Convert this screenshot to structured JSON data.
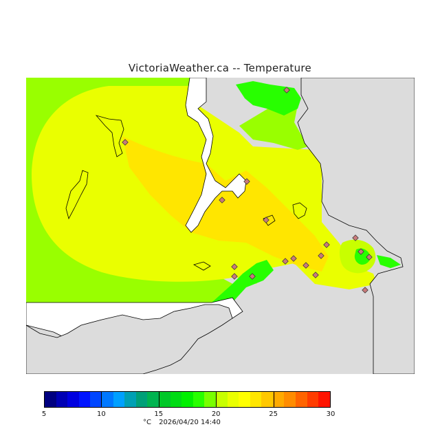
{
  "page": {
    "title": "VictoriaWeather.ca -- Temperature"
  },
  "map": {
    "variable": "Temperature",
    "unit": "°C",
    "timestamp": "2026/04/20 14:40",
    "colors": {
      "land_outside": "#dcdcdc",
      "water": "#ffffff",
      "coastline": "#000000",
      "station_marker": "#c87a7a"
    },
    "stations_count": 17
  },
  "colorbar": {
    "min": 5,
    "max": 30,
    "step": 1,
    "tick_labels": [
      "5",
      "10",
      "15",
      "20",
      "25",
      "30"
    ],
    "unit_label": "°C",
    "colors": [
      "#000080",
      "#0000b4",
      "#0000e0",
      "#0014ff",
      "#0046ff",
      "#0078ff",
      "#00a0ff",
      "#00a0b4",
      "#00a078",
      "#00b450",
      "#00c828",
      "#00dc14",
      "#00f000",
      "#28ff00",
      "#78ff00",
      "#c8ff00",
      "#eaff00",
      "#ffff00",
      "#ffe600",
      "#ffc800",
      "#ffaa00",
      "#ff8c00",
      "#ff6400",
      "#ff3c00",
      "#ff1400"
    ]
  }
}
